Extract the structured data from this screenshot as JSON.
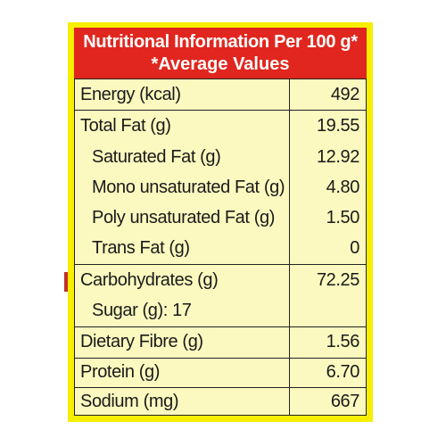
{
  "header": {
    "title": "Nutritional Information Per 100 g*",
    "subtitle": "*Average Values"
  },
  "rows": [
    {
      "label": "Energy (kcal)",
      "value": "492"
    },
    {
      "label": "Total Fat (g)",
      "value": "19.55"
    },
    {
      "label": "Saturated Fat (g)",
      "value": "12.92"
    },
    {
      "label": "Mono unsaturated Fat (g)",
      "value": "4.80"
    },
    {
      "label": "Poly unsaturated Fat (g)",
      "value": "1.50"
    },
    {
      "label": "Trans Fat (g)",
      "value": "0"
    },
    {
      "label": "Carbohydrates (g)",
      "value": "72.25"
    },
    {
      "label": "Sugar (g): 17",
      "value": ""
    },
    {
      "label": "Dietary Fibre (g)",
      "value": "1.56"
    },
    {
      "label": "Protein (g)",
      "value": "6.70"
    },
    {
      "label": "Sodium (mg)",
      "value": "667"
    }
  ],
  "colors": {
    "panel": "#f7ee00",
    "header_bg": "#e0261e",
    "table_bg": "#fbf9bf"
  }
}
